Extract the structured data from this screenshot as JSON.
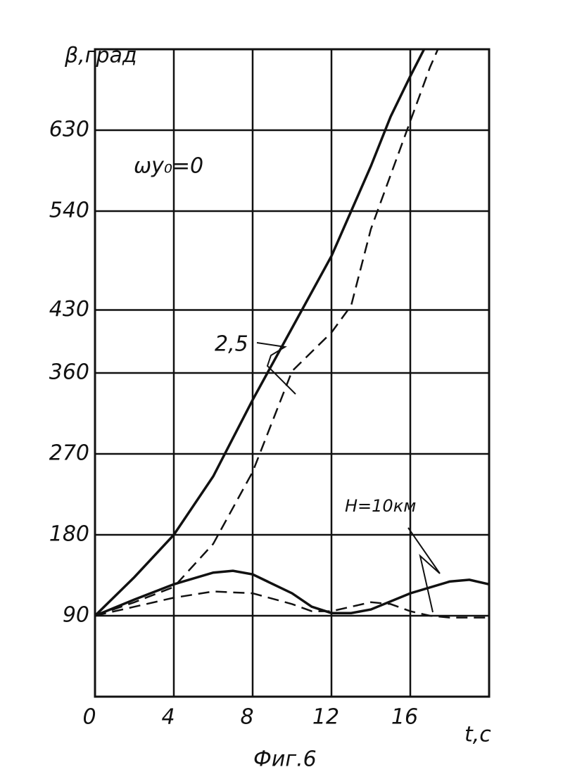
{
  "chart_data": {
    "type": "line",
    "y_label": "β,град",
    "x_label": "t,c",
    "caption": "Фиг.6",
    "annotations": [
      "ωy₀=0",
      "2,5",
      "H=10км"
    ],
    "xlim": [
      0,
      20
    ],
    "ylim": [
      0,
      720
    ],
    "xticks": [
      0,
      4,
      8,
      12,
      16
    ],
    "yticks": [
      90,
      180,
      270,
      360,
      430,
      540,
      630
    ],
    "grid": true,
    "series": [
      {
        "color": "#111",
        "style": "solid",
        "x": [
          0,
          2,
          4,
          6,
          8,
          10,
          12,
          13,
          14,
          15,
          16,
          16.7
        ],
        "values": [
          90,
          133,
          180,
          245,
          330,
          410,
          490,
          540,
          590,
          645,
          690,
          720
        ]
      },
      {
        "color": "#111",
        "style": "dashed",
        "x": [
          0,
          2,
          4,
          6,
          8,
          10,
          12,
          13,
          14,
          15,
          16,
          17,
          17.4
        ],
        "values": [
          90,
          105,
          122,
          170,
          250,
          362,
          405,
          435,
          520,
          580,
          640,
          700,
          720
        ]
      },
      {
        "color": "#111",
        "style": "solid",
        "x": [
          0,
          2,
          4,
          6,
          7,
          8,
          10,
          11,
          12,
          13,
          14,
          16,
          18,
          19,
          20
        ],
        "values": [
          90,
          108,
          125,
          138,
          140,
          136,
          115,
          100,
          93,
          93,
          97,
          115,
          128,
          130,
          125
        ]
      },
      {
        "color": "#111",
        "style": "dashed",
        "x": [
          0,
          2,
          4,
          6,
          8,
          10,
          11,
          12,
          13,
          14,
          15,
          16,
          17,
          18,
          20
        ],
        "values": [
          90,
          100,
          110,
          117,
          115,
          103,
          95,
          95,
          100,
          105,
          103,
          95,
          90,
          88,
          88
        ]
      }
    ]
  }
}
